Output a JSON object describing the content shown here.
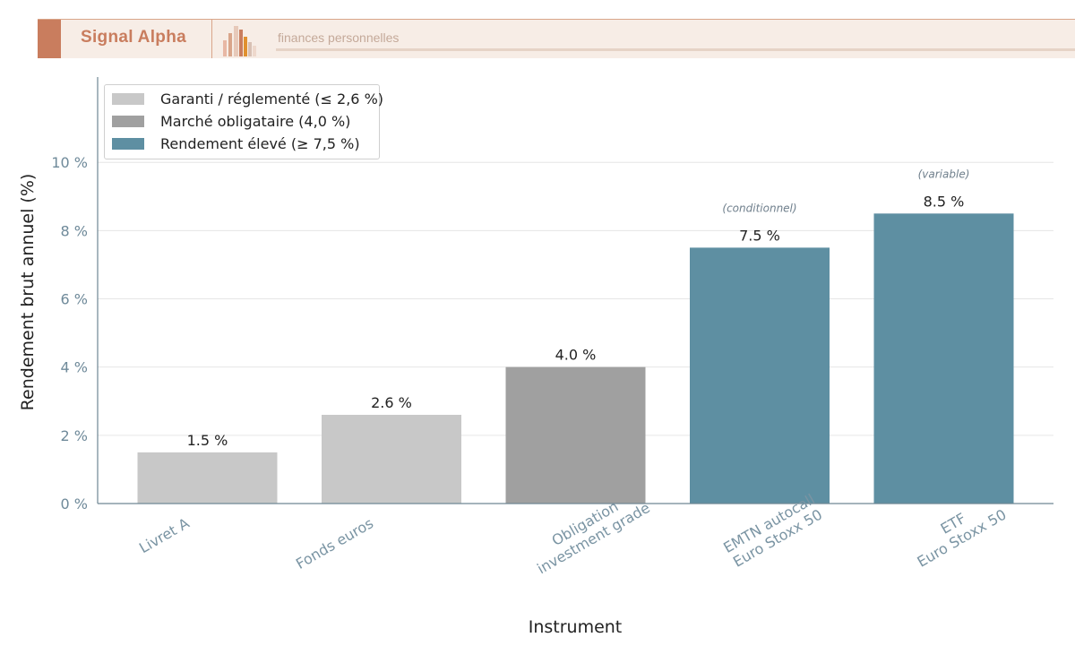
{
  "header": {
    "brand": "Signal Alpha",
    "tagline": "finances personnelles",
    "logo_icon": "bar-cluster-logo-icon",
    "accent_color": "#c97d5e"
  },
  "chart_data": {
    "type": "bar",
    "title": "",
    "xlabel": "Instrument",
    "ylabel": "Rendement brut annuel (%)",
    "ylim": [
      0,
      12.5
    ],
    "yticks": [
      0,
      2,
      4,
      6,
      8,
      10
    ],
    "ytick_labels": [
      "0 %",
      "2 %",
      "4 %",
      "6 %",
      "8 %",
      "10 %"
    ],
    "grid": "horizontal",
    "legend_position": "top-left",
    "categories": [
      "Livret A",
      "Fonds euros",
      "Obligation\ninvestment grade",
      "EMTN autocall\nEuro Stoxx 50",
      "ETF\nEuro Stoxx 50"
    ],
    "values": [
      1.5,
      2.6,
      4.0,
      7.5,
      8.5
    ],
    "value_labels": [
      "1.5 %",
      "2.6 %",
      "4.0 %",
      "7.5 %",
      "8.5 %"
    ],
    "annotations": [
      "",
      "",
      "",
      "(conditionnel)",
      "(variable)"
    ],
    "bar_groups": [
      0,
      0,
      1,
      2,
      2
    ],
    "legend": [
      {
        "label": "Garanti / réglementé (≤ 2,6 %)",
        "color": "#c8c8c8"
      },
      {
        "label": "Marché obligataire (4,0 %)",
        "color": "#a0a0a0"
      },
      {
        "label": "Rendement élevé (≥ 7,5 %)",
        "color": "#5e8fa2"
      }
    ]
  }
}
